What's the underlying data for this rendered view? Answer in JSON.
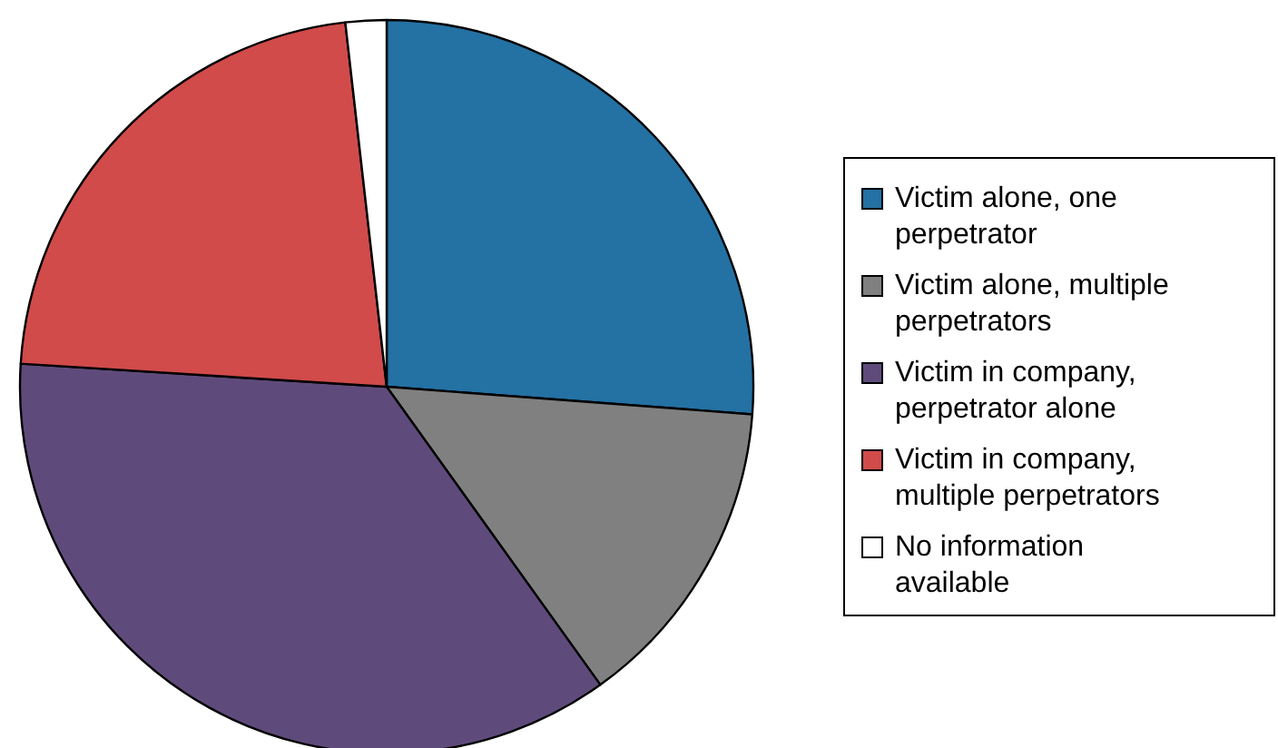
{
  "chart_data": {
    "type": "pie",
    "categories": [
      "Victim alone, one perpetrator",
      "Victim alone, multiple perpetrators",
      "Victim in company, perpetrator alone",
      "Victim in company, multiple perpetrators",
      "No information available"
    ],
    "values": [
      26.2,
      13.9,
      35.9,
      22.2,
      1.8
    ],
    "colors": [
      "#2471a3",
      "#808080",
      "#5f4b7b",
      "#d14b4b",
      "#ffffff"
    ],
    "legend": "right"
  }
}
